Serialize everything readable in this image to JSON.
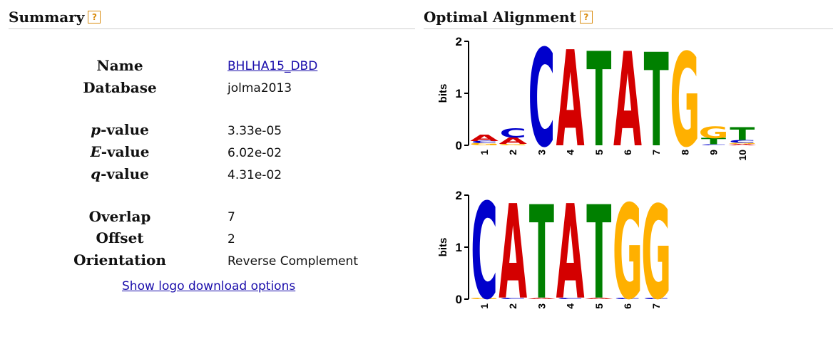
{
  "summary": {
    "title": "Summary",
    "help": "?",
    "rows": [
      {
        "label": "Name",
        "value": "BHLHA15_DBD"
      },
      {
        "label": "Database",
        "value": "jolma2013"
      },
      {
        "label_italic": "p",
        "label_rest": "-value",
        "value": "3.33e-05"
      },
      {
        "label_italic": "E",
        "label_rest": "-value",
        "value": "6.02e-02"
      },
      {
        "label_italic": "q",
        "label_rest": "-value",
        "value": "4.31e-02"
      },
      {
        "label": "Overlap",
        "value": "7"
      },
      {
        "label": "Offset",
        "value": "2"
      },
      {
        "label": "Orientation",
        "value": "Reverse Complement"
      }
    ],
    "download_link": "Show logo download options"
  },
  "alignment": {
    "title": "Optimal Alignment",
    "help": "?",
    "axis_label": "bits",
    "y_ticks": [
      "0",
      "1",
      "2"
    ],
    "colors": {
      "A": "#d40000",
      "C": "#0000cc",
      "G": "#ffb000",
      "T": "#008000"
    },
    "logos": [
      {
        "name": "query",
        "positions": [
          "1",
          "2",
          "3",
          "4",
          "5",
          "6",
          "7",
          "8",
          "9",
          "10"
        ],
        "columns": [
          [
            [
              "G",
              0.04
            ],
            [
              "C",
              0.04
            ],
            [
              "A",
              0.12
            ]
          ],
          [
            [
              "G",
              0.03
            ],
            [
              "A",
              0.12
            ],
            [
              "C",
              0.18
            ]
          ],
          [
            [
              "C",
              1.88
            ]
          ],
          [
            [
              "A",
              1.85
            ]
          ],
          [
            [
              "T",
              1.82
            ]
          ],
          [
            [
              "A",
              1.82
            ]
          ],
          [
            [
              "T",
              1.8
            ]
          ],
          [
            [
              "G",
              1.8
            ]
          ],
          [
            [
              "C",
              0.02
            ],
            [
              "T",
              0.12
            ],
            [
              "G",
              0.22
            ]
          ],
          [
            [
              "A",
              0.03
            ],
            [
              "G",
              0.02
            ],
            [
              "C",
              0.05
            ],
            [
              "T",
              0.25
            ]
          ]
        ]
      },
      {
        "name": "target",
        "positions": [
          "1",
          "2",
          "3",
          "4",
          "5",
          "6",
          "7"
        ],
        "columns": [
          [
            [
              "G",
              0.03
            ],
            [
              "C",
              1.85
            ]
          ],
          [
            [
              "C",
              0.03
            ],
            [
              "A",
              1.82
            ]
          ],
          [
            [
              "A",
              0.03
            ],
            [
              "T",
              1.8
            ]
          ],
          [
            [
              "C",
              0.03
            ],
            [
              "A",
              1.82
            ]
          ],
          [
            [
              "A",
              0.03
            ],
            [
              "T",
              1.8
            ]
          ],
          [
            [
              "C",
              0.03
            ],
            [
              "G",
              1.82
            ]
          ],
          [
            [
              "C",
              0.03
            ],
            [
              "G",
              1.8
            ]
          ]
        ]
      }
    ]
  }
}
